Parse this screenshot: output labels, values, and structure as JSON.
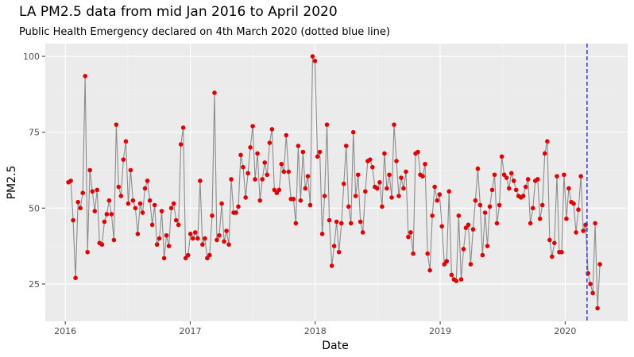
{
  "chart_data": {
    "type": "line",
    "title": "LA PM2.5 data from mid Jan 2016 to April 2020",
    "subtitle": "Public Health Emergency declared on 4th March 2020 (dotted blue line)",
    "x_label": "Date",
    "y_label": "PM2.5",
    "xlim": [
      2015.84,
      2020.5
    ],
    "ylim": [
      12.7,
      104.2
    ],
    "xticks": [
      2016,
      2017,
      2018,
      2019,
      2020
    ],
    "yticks": [
      25,
      50,
      75,
      100
    ],
    "grid": true,
    "vline_x": 2020.175,
    "vline_color": "#3a3adb",
    "x": [
      2016.025,
      2016.044,
      2016.063,
      2016.082,
      2016.102,
      2016.121,
      2016.14,
      2016.159,
      2016.178,
      2016.197,
      2016.217,
      2016.236,
      2016.255,
      2016.274,
      2016.294,
      2016.313,
      2016.332,
      2016.351,
      2016.37,
      2016.389,
      2016.408,
      2016.427,
      2016.446,
      2016.465,
      2016.485,
      2016.504,
      2016.523,
      2016.542,
      2016.561,
      2016.58,
      2016.6,
      2016.619,
      2016.638,
      2016.657,
      2016.677,
      2016.696,
      2016.715,
      2016.734,
      2016.753,
      2016.772,
      2016.791,
      2016.81,
      2016.829,
      2016.848,
      2016.868,
      2016.887,
      2016.906,
      2016.925,
      2016.944,
      2016.963,
      2016.983,
      2017.002,
      2017.021,
      2017.04,
      2017.06,
      2017.079,
      2017.098,
      2017.117,
      2017.136,
      2017.155,
      2017.175,
      2017.194,
      2017.213,
      2017.232,
      2017.252,
      2017.271,
      2017.29,
      2017.309,
      2017.328,
      2017.347,
      2017.366,
      2017.385,
      2017.404,
      2017.423,
      2017.443,
      2017.462,
      2017.481,
      2017.5,
      2017.519,
      2017.538,
      2017.558,
      2017.577,
      2017.596,
      2017.615,
      2017.635,
      2017.654,
      2017.673,
      2017.692,
      2017.711,
      2017.73,
      2017.749,
      2017.768,
      2017.787,
      2017.806,
      2017.826,
      2017.845,
      2017.864,
      2017.883,
      2017.902,
      2017.921,
      2017.941,
      2017.96,
      2017.979,
      2017.998,
      2018.018,
      2018.037,
      2018.056,
      2018.075,
      2018.094,
      2018.113,
      2018.133,
      2018.152,
      2018.171,
      2018.19,
      2018.21,
      2018.229,
      2018.248,
      2018.267,
      2018.286,
      2018.305,
      2018.324,
      2018.343,
      2018.362,
      2018.381,
      2018.401,
      2018.42,
      2018.439,
      2018.458,
      2018.477,
      2018.496,
      2018.516,
      2018.535,
      2018.554,
      2018.573,
      2018.593,
      2018.612,
      2018.631,
      2018.65,
      2018.669,
      2018.688,
      2018.707,
      2018.726,
      2018.745,
      2018.764,
      2018.784,
      2018.803,
      2018.822,
      2018.841,
      2018.86,
      2018.879,
      2018.899,
      2018.918,
      2018.937,
      2018.956,
      2018.976,
      2018.995,
      2019.014,
      2019.033,
      2019.052,
      2019.071,
      2019.091,
      2019.11,
      2019.129,
      2019.148,
      2019.168,
      2019.187,
      2019.206,
      2019.225,
      2019.244,
      2019.263,
      2019.282,
      2019.301,
      2019.32,
      2019.339,
      2019.359,
      2019.378,
      2019.397,
      2019.416,
      2019.435,
      2019.454,
      2019.474,
      2019.493,
      2019.512,
      2019.531,
      2019.551,
      2019.57,
      2019.589,
      2019.608,
      2019.627,
      2019.646,
      2019.665,
      2019.684,
      2019.703,
      2019.722,
      2019.742,
      2019.761,
      2019.78,
      2019.799,
      2019.818,
      2019.837,
      2019.857,
      2019.876,
      2019.895,
      2019.914,
      2019.934,
      2019.953,
      2019.972,
      2019.991,
      2020.01,
      2020.029,
      2020.049,
      2020.068,
      2020.087,
      2020.106,
      2020.126,
      2020.145,
      2020.164,
      2020.183,
      2020.202,
      2020.221,
      2020.24,
      2020.259,
      2020.278
    ],
    "line_color": "#8c8c8c",
    "point_color": "#e00000",
    "values": [
      58.5,
      59,
      46,
      27,
      52,
      50,
      55,
      93.5,
      35.5,
      62.5,
      55.5,
      49,
      56,
      38.5,
      38,
      45.5,
      48,
      52.5,
      48,
      39.5,
      77.5,
      57,
      54,
      66,
      72,
      51.5,
      62.5,
      52.5,
      50,
      41.5,
      51.5,
      48.5,
      56.5,
      59,
      52.5,
      44.5,
      51,
      38,
      40,
      49,
      33.5,
      41,
      37.5,
      50,
      51.5,
      46,
      44.5,
      71,
      76.5,
      33.5,
      34.5,
      41.5,
      40,
      42,
      40,
      59,
      38,
      40,
      33.5,
      34.5,
      47.5,
      88,
      39.5,
      41,
      51.5,
      39,
      42.5,
      38,
      59.5,
      48.5,
      48.5,
      50.5,
      67.5,
      63.5,
      53.5,
      61.5,
      70,
      77,
      59.5,
      68,
      52.5,
      59.5,
      65,
      61,
      71.5,
      76,
      56,
      55,
      56,
      64.5,
      62,
      74,
      62,
      53,
      53,
      45,
      70.5,
      52.5,
      68.5,
      56.5,
      60.5,
      51,
      100,
      98.5,
      67,
      68.5,
      41.5,
      54,
      77.5,
      46,
      31,
      37.5,
      45.5,
      35.5,
      45,
      58,
      70.5,
      50.5,
      45,
      75,
      54,
      61,
      45.5,
      42,
      55.5,
      65.5,
      66,
      63.5,
      57,
      56.5,
      58.5,
      50.5,
      68,
      56.5,
      61,
      53.5,
      77.5,
      65.5,
      54,
      60,
      56.5,
      62,
      40.5,
      42,
      35,
      68,
      68.5,
      61,
      60.5,
      64.5,
      35,
      29.5,
      47.5,
      57,
      52.5,
      54.5,
      44,
      31.5,
      32.5,
      55.5,
      28,
      26.5,
      26,
      47.5,
      26.5,
      36.5,
      43.5,
      44.5,
      31.5,
      43,
      52.5,
      63,
      51,
      34.5,
      48.5,
      37.5,
      50.5,
      56,
      61,
      45,
      51,
      67,
      61,
      60,
      56.5,
      61.5,
      59,
      56,
      54,
      53.5,
      54,
      57,
      59.5,
      45,
      50,
      59,
      59.5,
      46.5,
      51,
      68,
      72,
      39.5,
      34,
      38.5,
      60.5,
      35.5,
      35.5,
      61,
      46.5,
      56.5,
      52,
      51.5,
      42,
      49.5,
      60.5,
      42.5,
      44.5,
      28.5,
      25,
      22,
      45,
      17,
      31.5
    ]
  }
}
